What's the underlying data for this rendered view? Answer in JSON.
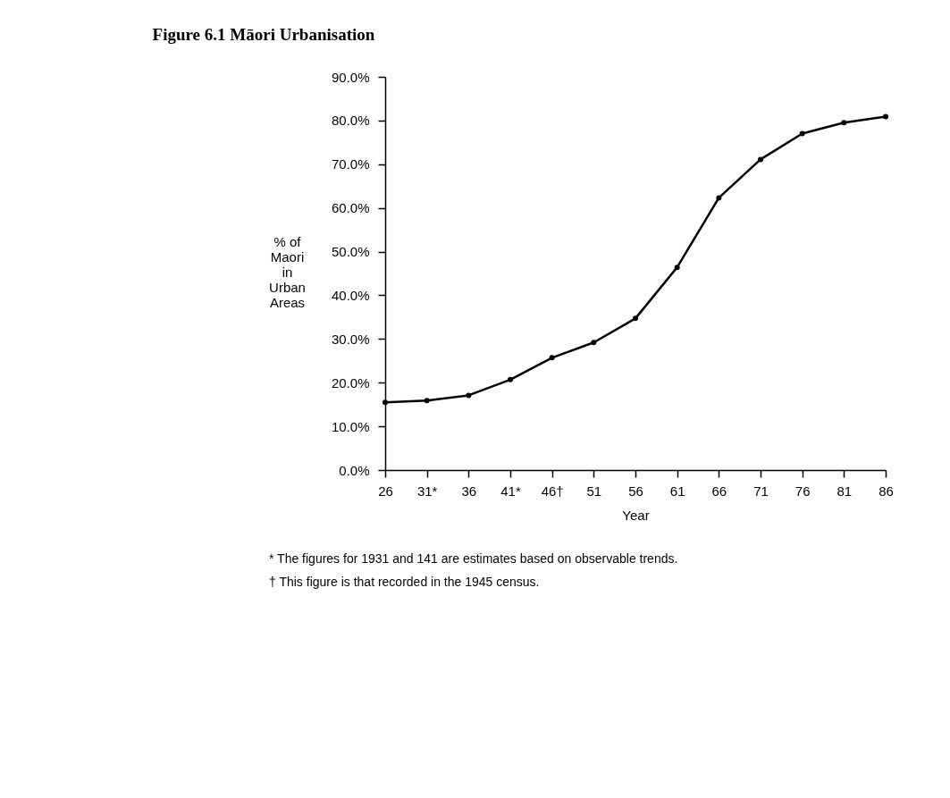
{
  "chart_data": {
    "type": "line",
    "title": "Figure 6.1 Māori Urbanisation",
    "xlabel": "Year",
    "ylabel": "% of Maori in Urban Areas",
    "x": [
      26,
      31,
      36,
      41,
      46,
      51,
      56,
      61,
      66,
      71,
      76,
      81,
      86
    ],
    "series": [
      {
        "color": "#000000",
        "values": [
          15.5,
          15.9,
          17.1,
          20.7,
          25.7,
          29.2,
          34.7,
          46.4,
          62.3,
          71.1,
          77.0,
          79.5,
          80.9
        ]
      }
    ],
    "xlim": [
      26,
      86
    ],
    "xticks": [
      26,
      {
        "value": 31,
        "label": "31*"
      },
      36,
      {
        "value": 41,
        "label": "41*"
      },
      {
        "value": 46,
        "label": "46†"
      },
      51,
      56,
      61,
      66,
      71,
      76,
      81,
      86
    ],
    "ylim": [
      0,
      90
    ],
    "yticks": [
      {
        "value": 0,
        "label": "0.0%"
      },
      {
        "value": 10,
        "label": "10.0%"
      },
      {
        "value": 20,
        "label": "20.0%"
      },
      {
        "value": 30,
        "label": "30.0%"
      },
      {
        "value": 40,
        "label": "40.0%"
      },
      {
        "value": 50,
        "label": "50.0%"
      },
      {
        "value": 60,
        "label": "60.0%"
      },
      {
        "value": 70,
        "label": "70.0%"
      },
      {
        "value": 80,
        "label": "80.0%"
      },
      {
        "value": 90,
        "label": "90.0%"
      }
    ],
    "grid": false,
    "marker": "circle",
    "line_style": "solid",
    "annotations": [
      "* The figures for 1931 and 141 are estimates based on observable trends.",
      "† This figure is that recorded in the 1945 census."
    ]
  }
}
